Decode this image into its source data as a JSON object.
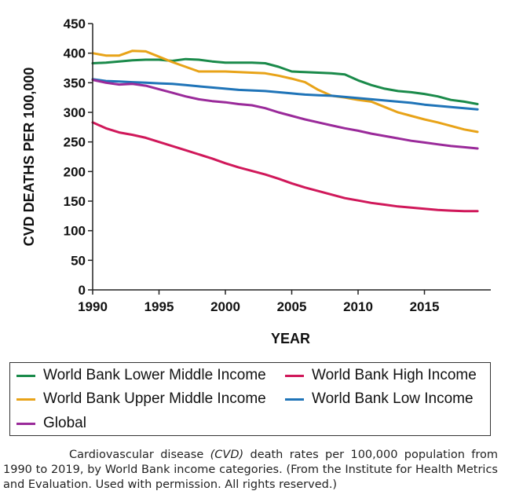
{
  "chart_data": {
    "type": "line",
    "xlabel": "YEAR",
    "ylabel": "CVD DEATHS PER 100,000",
    "xlim": [
      1990,
      2020
    ],
    "ylim": [
      0,
      450
    ],
    "xticks": [
      1990,
      1995,
      2000,
      2005,
      2010,
      2015
    ],
    "yticks": [
      0,
      50,
      100,
      150,
      200,
      250,
      300,
      350,
      400,
      450
    ],
    "grid": false,
    "legend_position": "bottom",
    "series": [
      {
        "name": "World Bank Lower Middle Income",
        "color": "#1a8a4a",
        "x": [
          1990,
          1991,
          1992,
          1993,
          1994,
          1995,
          1996,
          1997,
          1998,
          1999,
          2000,
          2001,
          2002,
          2003,
          2004,
          2005,
          2006,
          2007,
          2008,
          2009,
          2010,
          2011,
          2012,
          2013,
          2014,
          2015,
          2016,
          2017,
          2018,
          2019
        ],
        "y": [
          383,
          384,
          386,
          388,
          389,
          389,
          387,
          390,
          389,
          386,
          384,
          384,
          384,
          383,
          377,
          369,
          368,
          367,
          366,
          364,
          354,
          346,
          340,
          336,
          334,
          331,
          327,
          321,
          318,
          314
        ]
      },
      {
        "name": "World Bank High Income",
        "color": "#d0185a",
        "x": [
          1990,
          1991,
          1992,
          1993,
          1994,
          1995,
          1996,
          1997,
          1998,
          1999,
          2000,
          2001,
          2002,
          2003,
          2004,
          2005,
          2006,
          2007,
          2008,
          2009,
          2010,
          2011,
          2012,
          2013,
          2014,
          2015,
          2016,
          2017,
          2018,
          2019
        ],
        "y": [
          283,
          273,
          266,
          262,
          257,
          250,
          243,
          236,
          229,
          222,
          214,
          207,
          201,
          195,
          188,
          180,
          173,
          167,
          161,
          155,
          151,
          147,
          144,
          141,
          139,
          137,
          135,
          134,
          133,
          133
        ]
      },
      {
        "name": "World Bank Upper Middle Income",
        "color": "#e8a318",
        "x": [
          1990,
          1991,
          1992,
          1993,
          1994,
          1995,
          1996,
          1997,
          1998,
          1999,
          2000,
          2001,
          2002,
          2003,
          2004,
          2005,
          2006,
          2007,
          2008,
          2009,
          2010,
          2011,
          2012,
          2013,
          2014,
          2015,
          2016,
          2017,
          2018,
          2019
        ],
        "y": [
          400,
          396,
          396,
          404,
          403,
          394,
          385,
          377,
          369,
          369,
          369,
          368,
          367,
          366,
          362,
          357,
          351,
          338,
          328,
          325,
          321,
          318,
          309,
          300,
          294,
          288,
          283,
          277,
          271,
          267
        ]
      },
      {
        "name": "World Bank Low Income",
        "color": "#1f74b8",
        "x": [
          1990,
          1991,
          1992,
          1993,
          1994,
          1995,
          1996,
          1997,
          1998,
          1999,
          2000,
          2001,
          2002,
          2003,
          2004,
          2005,
          2006,
          2007,
          2008,
          2009,
          2010,
          2011,
          2012,
          2013,
          2014,
          2015,
          2016,
          2017,
          2018,
          2019
        ],
        "y": [
          356,
          353,
          352,
          351,
          350,
          349,
          348,
          346,
          344,
          342,
          340,
          338,
          337,
          336,
          334,
          332,
          330,
          329,
          328,
          326,
          324,
          322,
          320,
          318,
          316,
          313,
          311,
          309,
          307,
          305
        ]
      },
      {
        "name": "Global",
        "color": "#9a2a9a",
        "x": [
          1990,
          1991,
          1992,
          1993,
          1994,
          1995,
          1996,
          1997,
          1998,
          1999,
          2000,
          2001,
          2002,
          2003,
          2004,
          2005,
          2006,
          2007,
          2008,
          2009,
          2010,
          2011,
          2012,
          2013,
          2014,
          2015,
          2016,
          2017,
          2018,
          2019
        ],
        "y": [
          355,
          350,
          347,
          348,
          345,
          339,
          333,
          327,
          322,
          319,
          317,
          314,
          312,
          307,
          300,
          294,
          288,
          283,
          278,
          273,
          269,
          264,
          260,
          256,
          252,
          249,
          246,
          243,
          241,
          239
        ]
      }
    ]
  },
  "legend": {
    "items": [
      {
        "label": "World Bank Lower Middle Income",
        "color": "#1a8a4a"
      },
      {
        "label": "World Bank High Income",
        "color": "#d0185a"
      },
      {
        "label": "World Bank Upper Middle Income",
        "color": "#e8a318"
      },
      {
        "label": "World Bank Low Income",
        "color": "#1f74b8"
      },
      {
        "label": "Global",
        "color": "#9a2a9a"
      }
    ]
  },
  "caption": {
    "before": "Cardiovascular disease ",
    "abbr": "(CVD)",
    "after": " death rates per 100,000 population from 1990 to 2019, by World Bank income categories. (From the Institute for Health Metrics and Evaluation. Used with permission. All rights reserved.)"
  }
}
